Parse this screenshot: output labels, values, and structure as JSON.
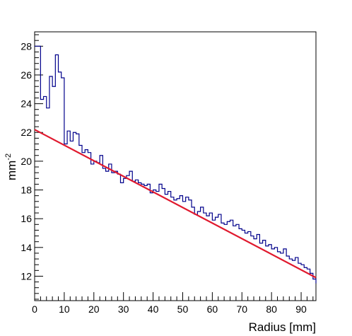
{
  "chart_data": {
    "type": "histogram",
    "title": "",
    "xlabel": "Radius [mm]",
    "ylabel_base": "mm",
    "ylabel_exp": "-2",
    "xlim": [
      0,
      95
    ],
    "ylim": [
      10.3,
      29
    ],
    "x_ticks": [
      0,
      10,
      20,
      30,
      40,
      50,
      60,
      70,
      80,
      90
    ],
    "y_ticks": [
      12,
      14,
      16,
      18,
      20,
      22,
      24,
      26,
      28
    ],
    "bin_width": 1,
    "bin_start": 0,
    "values": [
      28,
      28,
      24.3,
      24.5,
      23.7,
      25.9,
      25.2,
      27.4,
      26.2,
      25.8,
      21.2,
      22.1,
      21.4,
      22,
      21.9,
      21.1,
      20.6,
      20.8,
      20.6,
      19.8,
      20,
      19.9,
      20.4,
      19.5,
      19.3,
      19.8,
      19.2,
      19.3,
      19.1,
      18.5,
      18.8,
      19,
      19.3,
      18.6,
      18.7,
      18.5,
      18.4,
      18.3,
      18.4,
      17.8,
      18,
      17.9,
      18.4,
      18.1,
      17.7,
      17.9,
      17.5,
      17.3,
      17.4,
      17.6,
      17.2,
      17.5,
      17.3,
      16.8,
      16.3,
      16.5,
      16.8,
      16.4,
      16.2,
      16.4,
      15.9,
      16.1,
      16.3,
      15.7,
      15.6,
      15.8,
      15.9,
      15.5,
      15.6,
      15.3,
      15.2,
      15,
      15.1,
      14.8,
      14.6,
      14.9,
      14.3,
      14.5,
      14.1,
      14.2,
      13.9,
      14,
      13.7,
      13.6,
      13.9,
      13.4,
      13.2,
      13.1,
      13.3,
      12.9,
      12.8,
      12.6,
      12.5,
      12.2,
      11.8,
      11.5
    ],
    "hist_color": "#00008b",
    "fit": {
      "type": "linear",
      "x_start": 0,
      "y_start": 22.2,
      "x_end": 95,
      "y_end": 11.9,
      "color": "#e0192e"
    }
  }
}
